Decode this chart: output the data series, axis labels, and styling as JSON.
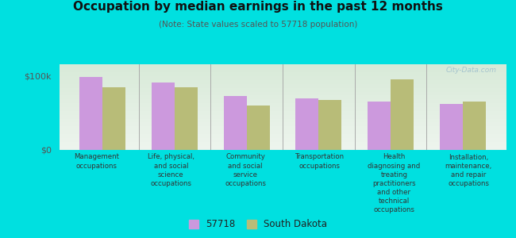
{
  "title": "Occupation by median earnings in the past 12 months",
  "subtitle": "(Note: State values scaled to 57718 population)",
  "background_color": "#00e0e0",
  "plot_bg_top": "#d8ead8",
  "plot_bg_bottom": "#eef5ee",
  "bar_color_57718": "#cc99dd",
  "bar_color_sd": "#b8bc78",
  "categories": [
    "Management\noccupations",
    "Life, physical,\nand social\nscience\noccupations",
    "Community\nand social\nservice\noccupations",
    "Transportation\noccupations",
    "Health\ndiagnosing and\ntreating\npractitioners\nand other\ntechnical\noccupations",
    "Installation,\nmaintenance,\nand repair\noccupations"
  ],
  "values_57718": [
    98000,
    90000,
    72000,
    69000,
    65000,
    62000
  ],
  "values_sd": [
    84000,
    84000,
    60000,
    67000,
    95000,
    65000
  ],
  "ylim": [
    0,
    115000
  ],
  "yticks": [
    0,
    100000
  ],
  "ytick_labels": [
    "$0",
    "$100k"
  ],
  "legend_labels": [
    "57718",
    "South Dakota"
  ],
  "watermark": "City-Data.com"
}
